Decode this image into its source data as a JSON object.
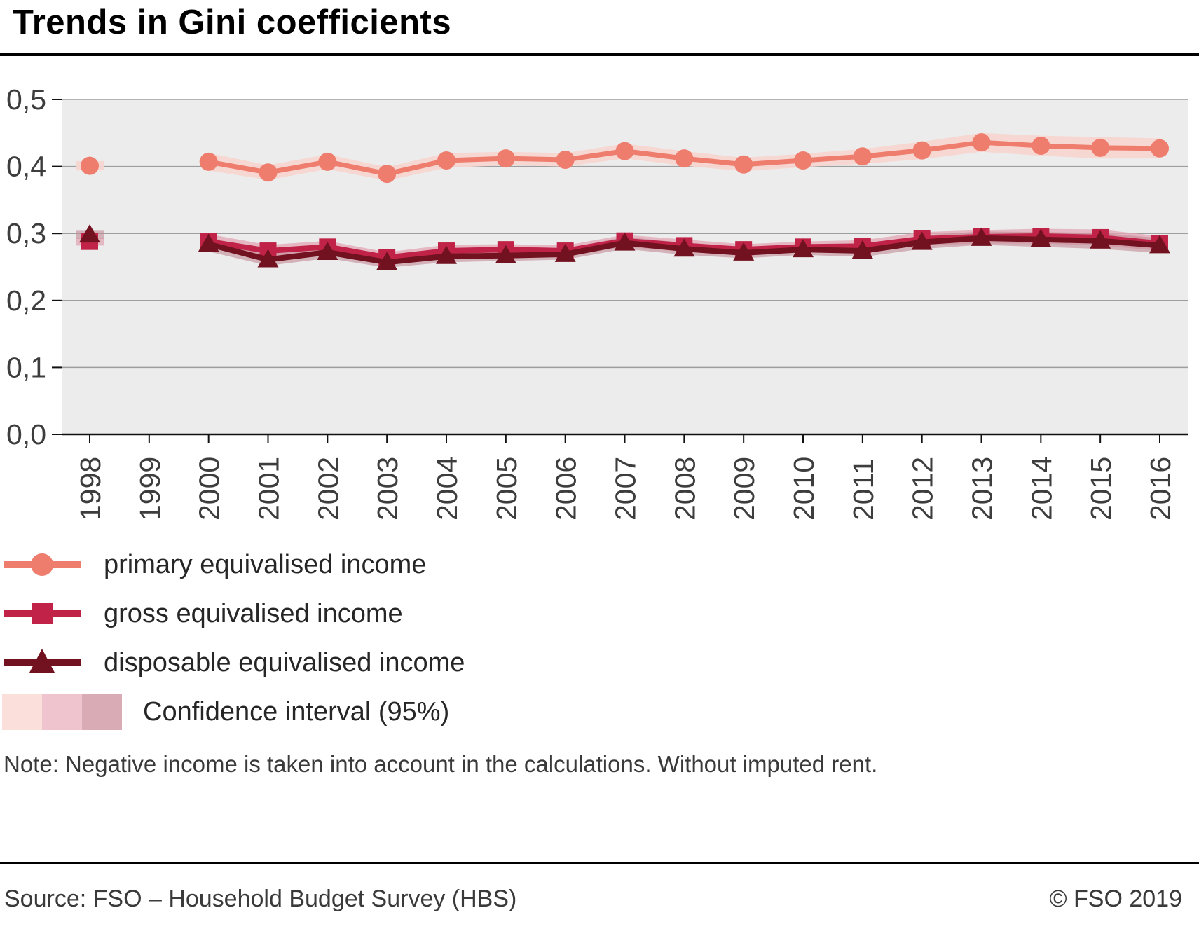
{
  "title": "Trends in Gini coefficients",
  "note": "Note: Negative income is taken into account in the calculations. Without imputed rent.",
  "footer": {
    "source": "Source: FSO – Household Budget Survey (HBS)",
    "copyright": "© FSO 2019"
  },
  "legend": [
    {
      "label": "primary equivalised income",
      "marker": "circle",
      "color": "#ee7d6e"
    },
    {
      "label": "gross equivalised income",
      "marker": "square",
      "color": "#c02347"
    },
    {
      "label": "disposable equivalised income",
      "marker": "triangle",
      "color": "#72111f"
    },
    {
      "label": "Confidence interval (95%)",
      "marker": "bands",
      "colors": [
        "#fadfdb",
        "#f0c4cf",
        "#d9abb5"
      ]
    }
  ],
  "chart_data": {
    "type": "line",
    "x": [
      1998,
      1999,
      2000,
      2001,
      2002,
      2003,
      2004,
      2005,
      2006,
      2007,
      2008,
      2009,
      2010,
      2011,
      2012,
      2013,
      2014,
      2015,
      2016
    ],
    "ylim": [
      0,
      0.5
    ],
    "yticks": [
      "0,0",
      "0,1",
      "0,2",
      "0,3",
      "0,4",
      "0,5"
    ],
    "plot_bg": "#ececec",
    "grid_color": "#9e9e9e",
    "axis_color": "#111111",
    "series": [
      {
        "name": "primary equivalised income",
        "marker": "circle",
        "color": "#ee7d6e",
        "line_width": 7,
        "ci_color": "#f7d6d1",
        "ci_opacity": 0.95,
        "values": [
          0.401,
          null,
          0.407,
          0.391,
          0.407,
          0.389,
          0.409,
          0.412,
          0.41,
          0.423,
          0.412,
          0.403,
          0.409,
          0.415,
          0.424,
          0.436,
          0.431,
          0.428,
          0.427
        ],
        "ci": [
          0.007,
          null,
          0.013,
          0.011,
          0.011,
          0.01,
          0.011,
          0.01,
          0.01,
          0.011,
          0.011,
          0.01,
          0.01,
          0.011,
          0.013,
          0.014,
          0.015,
          0.016,
          0.015
        ]
      },
      {
        "name": "gross equivalised income",
        "marker": "square",
        "color": "#c02347",
        "line_width": 8,
        "ci_color": "#e2a5b4",
        "ci_opacity": 0.75,
        "values": [
          0.288,
          null,
          0.288,
          0.274,
          0.28,
          0.264,
          0.274,
          0.276,
          0.274,
          0.289,
          0.282,
          0.276,
          0.28,
          0.281,
          0.292,
          0.295,
          0.296,
          0.294,
          0.285
        ],
        "ci": [
          0.006,
          null,
          0.011,
          0.009,
          0.009,
          0.008,
          0.009,
          0.008,
          0.008,
          0.009,
          0.009,
          0.008,
          0.008,
          0.009,
          0.01,
          0.01,
          0.011,
          0.012,
          0.011
        ]
      },
      {
        "name": "disposable equivalised income",
        "marker": "triangle",
        "color": "#72111f",
        "line_width": 8,
        "ci_color": "#c38a96",
        "ci_opacity": 0.6,
        "values": [
          0.298,
          null,
          0.284,
          0.261,
          0.272,
          0.257,
          0.266,
          0.267,
          0.269,
          0.286,
          0.277,
          0.271,
          0.276,
          0.274,
          0.287,
          0.293,
          0.291,
          0.289,
          0.282
        ],
        "ci": [
          0.006,
          null,
          0.011,
          0.009,
          0.009,
          0.008,
          0.009,
          0.008,
          0.008,
          0.009,
          0.009,
          0.008,
          0.008,
          0.009,
          0.01,
          0.01,
          0.011,
          0.012,
          0.011
        ]
      }
    ]
  }
}
